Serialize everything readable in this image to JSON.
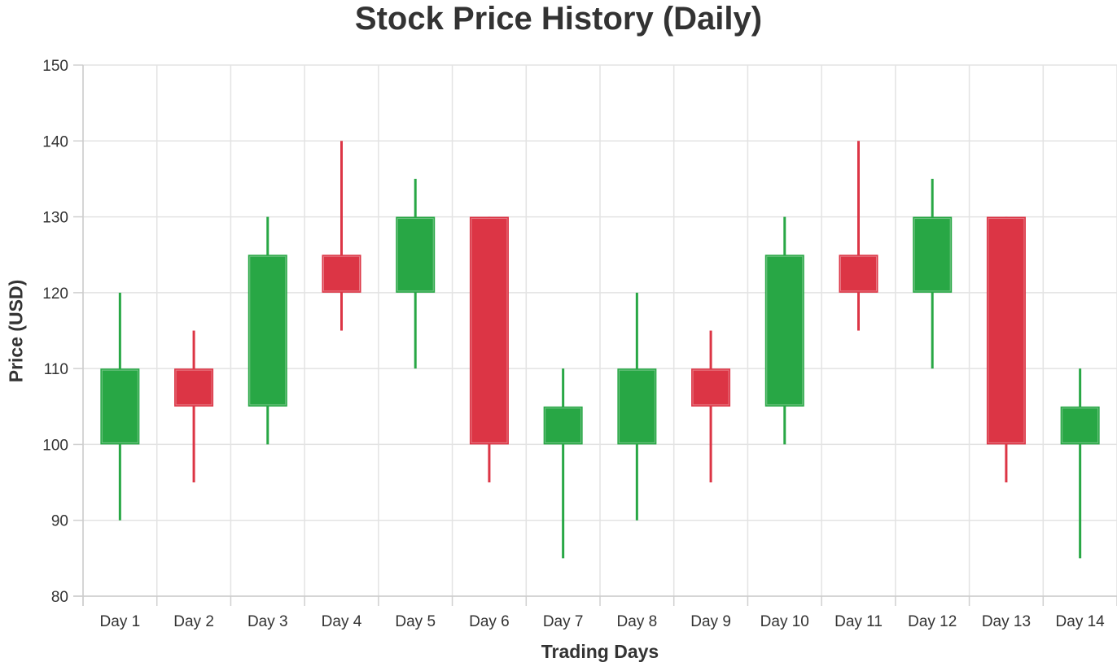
{
  "chart_data": {
    "type": "candlestick",
    "title": "Stock Price History (Daily)",
    "xlabel": "Trading Days",
    "ylabel": "Price (USD)",
    "ylim": [
      80,
      150
    ],
    "yticks": [
      80,
      90,
      100,
      110,
      120,
      130,
      140,
      150
    ],
    "grid": true,
    "legend": null,
    "categories": [
      "Day 1",
      "Day 2",
      "Day 3",
      "Day 4",
      "Day 5",
      "Day 6",
      "Day 7",
      "Day 8",
      "Day 9",
      "Day 10",
      "Day 11",
      "Day 12",
      "Day 13",
      "Day 14"
    ],
    "series": [
      {
        "name": "open",
        "values": [
          100,
          110,
          105,
          125,
          120,
          130,
          100,
          100,
          110,
          105,
          125,
          120,
          130,
          100
        ]
      },
      {
        "name": "high",
        "values": [
          120,
          115,
          130,
          140,
          135,
          130,
          110,
          120,
          115,
          130,
          140,
          135,
          130,
          110
        ]
      },
      {
        "name": "low",
        "values": [
          90,
          95,
          100,
          115,
          110,
          95,
          85,
          90,
          95,
          100,
          115,
          110,
          95,
          85
        ]
      },
      {
        "name": "close",
        "values": [
          110,
          105,
          125,
          120,
          130,
          100,
          105,
          110,
          105,
          125,
          120,
          130,
          100,
          105
        ]
      }
    ],
    "colors": {
      "up": "#28a745",
      "down": "#dc3545"
    }
  }
}
